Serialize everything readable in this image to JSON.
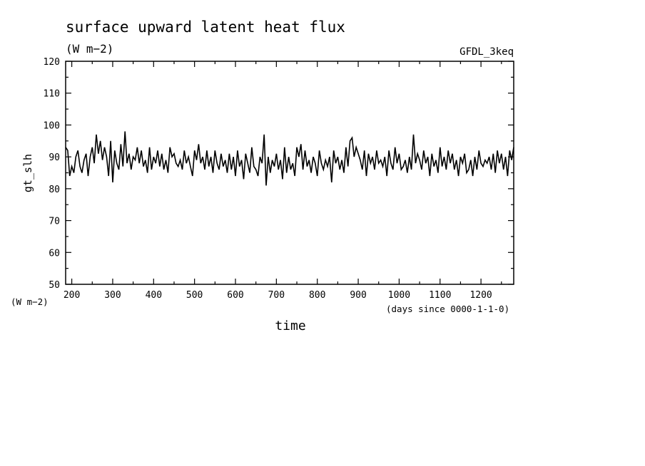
{
  "chart_data": {
    "type": "line",
    "title": "surface upward latent heat flux",
    "subtitle": "(W m−2)",
    "dataset_label": "GFDL_3keq",
    "ylabel": "gt_slh",
    "yunit": "(W m−2)",
    "xlabel": "time",
    "xunit": "(days since 0000-1-1-0)",
    "xlim": [
      185,
      1280
    ],
    "ylim": [
      50,
      120
    ],
    "xticks": [
      200,
      300,
      400,
      500,
      600,
      700,
      800,
      900,
      1000,
      1100,
      1200
    ],
    "yticks": [
      50,
      60,
      70,
      80,
      90,
      100,
      110,
      120
    ],
    "grid": false,
    "legend": "none",
    "line_color": "#000000",
    "series": [
      {
        "x": [
          185,
          190,
          195,
          200,
          205,
          210,
          215,
          220,
          225,
          230,
          235,
          240,
          245,
          250,
          255,
          260,
          265,
          270,
          275,
          280,
          285,
          290,
          295,
          300,
          305,
          310,
          315,
          320,
          325,
          330,
          335,
          340,
          345,
          350,
          355,
          360,
          365,
          370,
          375,
          380,
          385,
          390,
          395,
          400,
          405,
          410,
          415,
          420,
          425,
          430,
          435,
          440,
          445,
          450,
          455,
          460,
          465,
          470,
          475,
          480,
          485,
          490,
          495,
          500,
          505,
          510,
          515,
          520,
          525,
          530,
          535,
          540,
          545,
          550,
          555,
          560,
          565,
          570,
          575,
          580,
          585,
          590,
          595,
          600,
          605,
          610,
          615,
          620,
          625,
          630,
          635,
          640,
          645,
          650,
          655,
          660,
          665,
          670,
          675,
          680,
          685,
          690,
          695,
          700,
          705,
          710,
          715,
          720,
          725,
          730,
          735,
          740,
          745,
          750,
          755,
          760,
          765,
          770,
          775,
          780,
          785,
          790,
          795,
          800,
          805,
          810,
          815,
          820,
          825,
          830,
          835,
          840,
          845,
          850,
          855,
          860,
          865,
          870,
          875,
          880,
          885,
          890,
          895,
          900,
          905,
          910,
          915,
          920,
          925,
          930,
          935,
          940,
          945,
          950,
          955,
          960,
          965,
          970,
          975,
          980,
          985,
          990,
          995,
          1000,
          1005,
          1010,
          1015,
          1020,
          1025,
          1030,
          1035,
          1040,
          1045,
          1050,
          1055,
          1060,
          1065,
          1070,
          1075,
          1080,
          1085,
          1090,
          1095,
          1100,
          1105,
          1110,
          1115,
          1120,
          1125,
          1130,
          1135,
          1140,
          1145,
          1150,
          1155,
          1160,
          1165,
          1170,
          1175,
          1180,
          1185,
          1190,
          1195,
          1200,
          1205,
          1210,
          1215,
          1220,
          1225,
          1230,
          1235,
          1240,
          1245,
          1250,
          1255,
          1260,
          1265,
          1270,
          1275,
          1280
        ],
        "values": [
          93,
          92,
          84,
          87,
          85,
          90,
          92,
          87,
          85,
          89,
          91,
          84,
          90,
          93,
          88,
          97,
          91,
          95,
          89,
          93,
          90,
          84,
          95,
          82,
          92,
          88,
          86,
          94,
          87,
          98,
          88,
          91,
          86,
          90,
          89,
          93,
          88,
          92,
          87,
          89,
          85,
          93,
          86,
          90,
          88,
          92,
          87,
          91,
          86,
          89,
          85,
          93,
          90,
          91,
          88,
          87,
          89,
          86,
          92,
          88,
          90,
          87,
          84,
          92,
          89,
          94,
          88,
          90,
          86,
          92,
          87,
          90,
          85,
          92,
          88,
          86,
          91,
          87,
          89,
          85,
          91,
          86,
          90,
          84,
          92,
          87,
          89,
          83,
          91,
          88,
          85,
          93,
          87,
          86,
          84,
          90,
          88,
          97,
          81,
          90,
          85,
          89,
          87,
          91,
          86,
          89,
          83,
          93,
          85,
          90,
          86,
          88,
          84,
          93,
          90,
          94,
          86,
          92,
          87,
          89,
          85,
          90,
          88,
          84,
          92,
          88,
          86,
          89,
          87,
          90,
          82,
          92,
          88,
          90,
          86,
          89,
          85,
          93,
          87,
          95,
          96,
          90,
          93,
          91,
          89,
          86,
          92,
          84,
          91,
          88,
          90,
          86,
          92,
          88,
          89,
          87,
          90,
          84,
          92,
          88,
          86,
          93,
          88,
          91,
          86,
          87,
          89,
          85,
          90,
          86,
          97,
          88,
          91,
          89,
          86,
          92,
          88,
          90,
          84,
          91,
          87,
          89,
          85,
          93,
          87,
          90,
          86,
          92,
          88,
          91,
          86,
          89,
          84,
          90,
          88,
          91,
          85,
          86,
          89,
          84,
          90,
          86,
          92,
          88,
          87,
          89,
          88,
          90,
          86,
          91,
          85,
          92,
          88,
          91,
          86,
          90,
          84,
          92,
          89,
          93
        ]
      }
    ]
  }
}
